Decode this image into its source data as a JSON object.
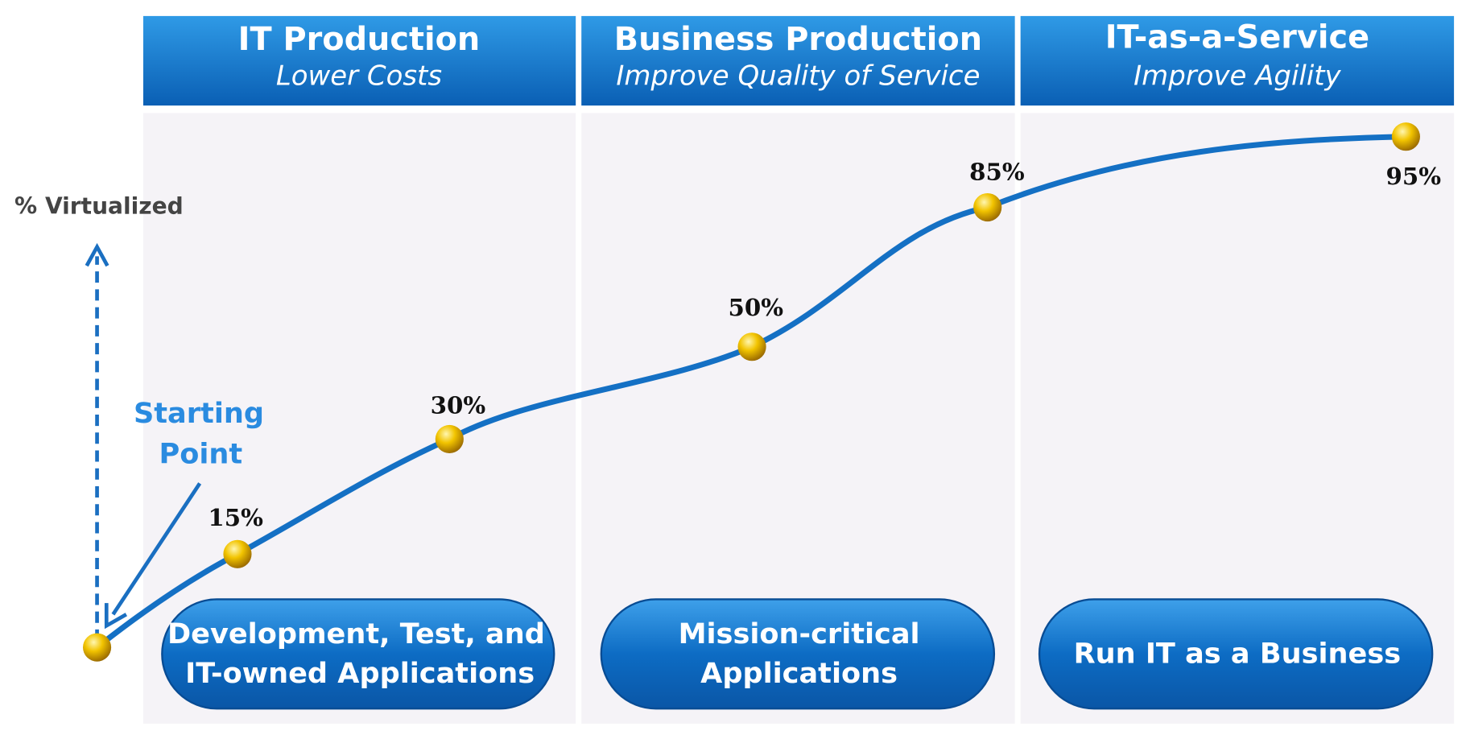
{
  "axis_label": "% Virtualized",
  "start_label": [
    "Starting",
    "Point"
  ],
  "phases": [
    {
      "title": "IT Production",
      "subtitle": "Lower Costs",
      "pill": [
        "Development, Test, and",
        "IT-owned Applications"
      ]
    },
    {
      "title": "Business Production",
      "subtitle": "Improve Quality of Service",
      "pill": [
        "Mission-critical",
        "Applications"
      ]
    },
    {
      "title": "IT-as-a-Service",
      "subtitle": "Improve Agility",
      "pill": [
        "Run IT as a Business"
      ]
    }
  ],
  "milestones": [
    "15%",
    "30%",
    "50%",
    "85%",
    "95%"
  ]
}
